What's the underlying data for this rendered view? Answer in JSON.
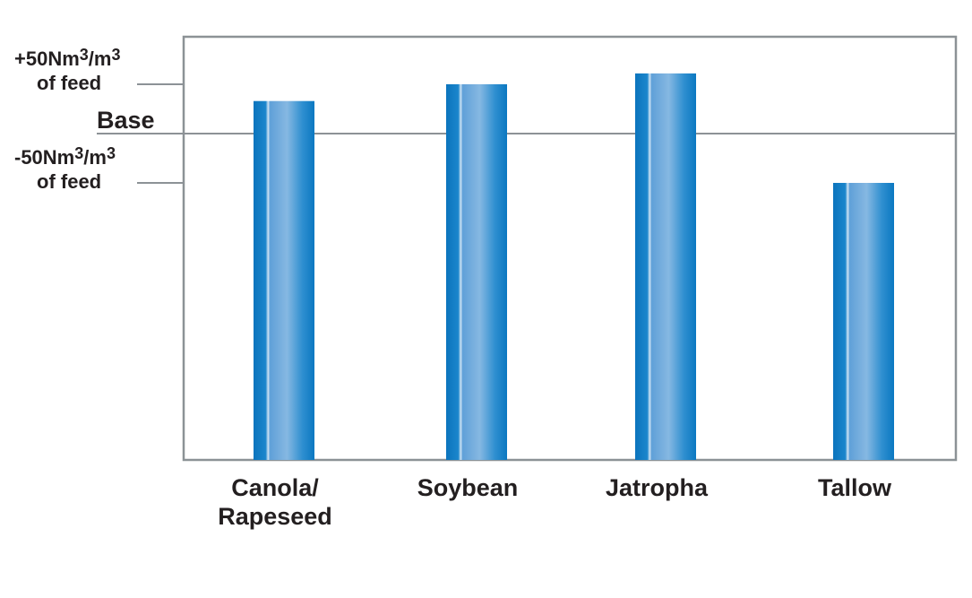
{
  "chart_data": {
    "type": "bar",
    "categories": [
      "Canola/\nRapeseed",
      "Soybean",
      "Jatropha",
      "Tallow"
    ],
    "values": [
      33,
      50,
      61,
      -50
    ],
    "ylim": [
      -330,
      100
    ],
    "baseline_label": "Base",
    "ticks": [
      {
        "value": 50,
        "line1_prefix": "+50Nm",
        "line1_sup1": "3",
        "line1_mid": "/m",
        "line1_sup2": "3",
        "line2": "of feed"
      },
      {
        "value": -50,
        "line1_prefix": "-50Nm",
        "line1_sup1": "3",
        "line1_mid": "/m",
        "line1_sup2": "3",
        "line2": "of feed"
      }
    ],
    "grid": false,
    "colors": {
      "bar": "#0b7cc4",
      "bar_highlight": "#7fb3e0",
      "frame": "#8c9296",
      "text": "#231f20"
    }
  }
}
